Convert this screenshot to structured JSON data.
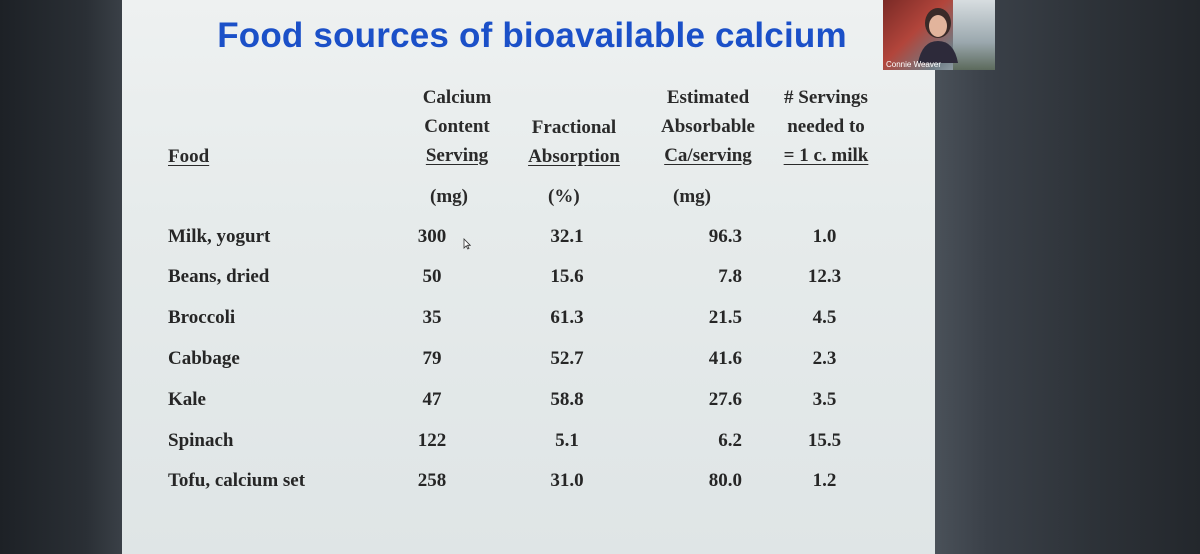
{
  "slide": {
    "title": "Food sources of bioavailable calcium",
    "headers": {
      "food": "Food",
      "calcium": [
        "Calcium",
        "Content",
        "Serving"
      ],
      "fractional": [
        "Fractional",
        "Absorption"
      ],
      "estimated": [
        "Estimated",
        "Absorbable",
        "Ca/serving"
      ],
      "servings": [
        "# Servings",
        "needed to",
        "= 1 c. milk"
      ]
    },
    "units": {
      "calcium": "(mg)",
      "fractional": "(%)",
      "estimated": "(mg)"
    },
    "rows": [
      {
        "food": "Milk, yogurt",
        "calcium": "300",
        "absorption": "32.1",
        "estimated": "96.3",
        "servings": "1.0"
      },
      {
        "food": "Beans, dried",
        "calcium": "50",
        "absorption": "15.6",
        "estimated": "7.8",
        "servings": "12.3"
      },
      {
        "food": "Broccoli",
        "calcium": "35",
        "absorption": "61.3",
        "estimated": "21.5",
        "servings": "4.5"
      },
      {
        "food": "Cabbage",
        "calcium": "79",
        "absorption": "52.7",
        "estimated": "41.6",
        "servings": "2.3"
      },
      {
        "food": "Kale",
        "calcium": "47",
        "absorption": "58.8",
        "estimated": "27.6",
        "servings": "3.5"
      },
      {
        "food": "Spinach",
        "calcium": "122",
        "absorption": "5.1",
        "estimated": "6.2",
        "servings": "15.5"
      },
      {
        "food": "Tofu, calcium set",
        "calcium": "258",
        "absorption": "31.0",
        "estimated": "80.0",
        "servings": "1.2"
      }
    ]
  },
  "video": {
    "participant_name": "Connie Weaver"
  },
  "colors": {
    "title": "#1b50c8",
    "slide_bg": "#e6ebeb",
    "text": "#262626"
  }
}
